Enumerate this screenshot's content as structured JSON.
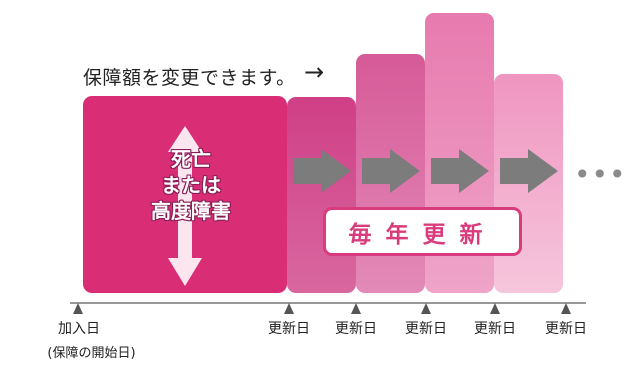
{
  "header_note": "保障額を変更できます。",
  "primary_box_lines": [
    "死亡",
    "または",
    "高度障害"
  ],
  "renewal_badge": "毎年更新",
  "timeline": {
    "start_label": "加入日",
    "start_sublabel": "(保障の開始日)",
    "renewal_labels": [
      "更新日",
      "更新日",
      "更新日",
      "更新日",
      "更新日"
    ]
  },
  "continuation": "•••",
  "colors": {
    "primary": "#d93c7c",
    "secondary": "#e36ca3",
    "tertiary": "#ef9bc4",
    "quaternary": "#f5c4dc",
    "arrow": "#7c7c7c"
  }
}
